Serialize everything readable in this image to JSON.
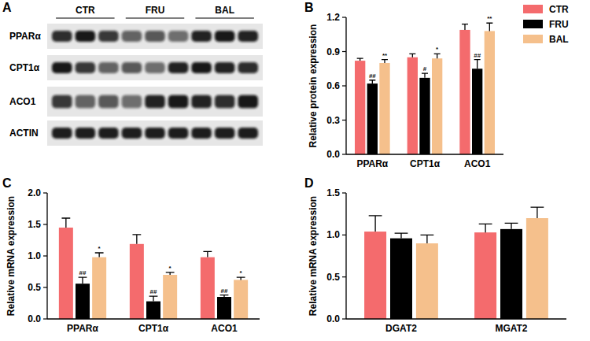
{
  "blot": {
    "title": "A",
    "groups": [
      "CTR",
      "FRU",
      "BAL"
    ],
    "rows": [
      "PPARα",
      "CPT1α",
      "ACO1",
      "ACTIN"
    ]
  },
  "chart_data": [
    {
      "type": "bar",
      "title": "B",
      "y_label": "Relative protein expression",
      "categories": [
        "PPARα",
        "CPT1α",
        "ACO1"
      ],
      "series": [
        {
          "name": "CTR",
          "color": "#f46b6d",
          "values": [
            0.82,
            0.85,
            1.09
          ],
          "error": [
            0.02,
            0.03,
            0.05
          ]
        },
        {
          "name": "FRU",
          "color": "#000000",
          "values": [
            0.62,
            0.67,
            0.75
          ],
          "error": [
            0.03,
            0.04,
            0.08
          ],
          "significance": [
            "##",
            "#",
            "##"
          ]
        },
        {
          "name": "BAL",
          "color": "#f5c08c",
          "values": [
            0.8,
            0.84,
            1.08
          ],
          "error": [
            0.03,
            0.04,
            0.07
          ],
          "significance": [
            "**",
            "*",
            "**"
          ]
        }
      ],
      "ylim": [
        0,
        1.2
      ],
      "yticks": [
        {
          "value": 0,
          "label": "0.0"
        },
        0.3,
        0.6,
        0.9,
        1.2
      ],
      "grid": false,
      "legend": "top-right"
    },
    {
      "type": "bar",
      "title": "C",
      "y_label": "Relative mRNA expression",
      "categories": [
        "PPARα",
        "CPT1α",
        "ACO1"
      ],
      "series": [
        {
          "name": "CTR",
          "color": "#f46b6d",
          "values": [
            1.45,
            1.19,
            0.98
          ],
          "error": [
            0.15,
            0.15,
            0.09
          ]
        },
        {
          "name": "FRU",
          "color": "#000000",
          "values": [
            0.56,
            0.28,
            0.35
          ],
          "error": [
            0.1,
            0.08,
            0.03
          ],
          "significance": [
            "##",
            "##",
            "##"
          ]
        },
        {
          "name": "BAL",
          "color": "#f5c08c",
          "values": [
            0.98,
            0.7,
            0.62
          ],
          "error": [
            0.07,
            0.04,
            0.04
          ],
          "significance": [
            "*",
            "*",
            "*"
          ]
        }
      ],
      "ylim": [
        0,
        2
      ],
      "yticks": [
        {
          "value": 0,
          "label": "0.0"
        },
        0.5,
        {
          "value": 1,
          "label": "1.0"
        },
        1.5,
        {
          "value": 2,
          "label": "2.0"
        }
      ],
      "grid": false
    },
    {
      "type": "bar",
      "title": "D",
      "y_label": "Relative mRNA expression",
      "categories": [
        "DGAT2",
        "MGAT2"
      ],
      "series": [
        {
          "name": "CTR",
          "color": "#f46b6d",
          "values": [
            1.04,
            1.03
          ],
          "error": [
            0.19,
            0.1
          ]
        },
        {
          "name": "FRU",
          "color": "#000000",
          "values": [
            0.96,
            1.07
          ],
          "error": [
            0.06,
            0.07
          ]
        },
        {
          "name": "BAL",
          "color": "#f5c08c",
          "values": [
            0.9,
            1.2
          ],
          "error": [
            0.1,
            0.13
          ]
        }
      ],
      "ylim": [
        0,
        1.5
      ],
      "yticks": [
        {
          "value": 0,
          "label": "0.0"
        },
        0.5,
        {
          "value": 1,
          "label": "1.0"
        },
        1.5
      ],
      "grid": false
    }
  ]
}
